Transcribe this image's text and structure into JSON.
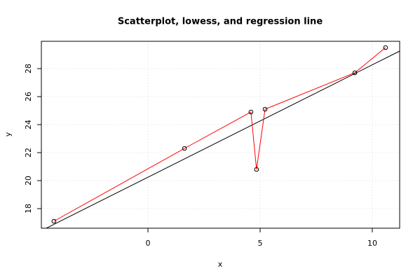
{
  "chart_data": {
    "type": "scatter",
    "title": "Scatterplot, lowess, and regression line",
    "x_label": "x",
    "y_label": "y",
    "x": [
      -4.19,
      1.63,
      4.59,
      4.84,
      5.22,
      9.22,
      10.59
    ],
    "values": [
      17.1,
      22.3,
      24.9,
      20.8,
      25.1,
      27.7,
      29.5
    ],
    "point_color": "#000000",
    "lowess": {
      "color": "#ff0000",
      "x": [
        -4.19,
        1.63,
        4.59,
        4.84,
        5.22,
        9.22,
        10.59
      ],
      "values": [
        17.1,
        22.3,
        24.9,
        20.8,
        25.1,
        27.7,
        29.5
      ]
    },
    "regression": {
      "color": "#000000",
      "intercept": 20.24,
      "slope": 0.803
    },
    "xlim": [
      -4.75,
      11.22
    ],
    "ylim": [
      16.6,
      29.95
    ],
    "xticks": [
      0,
      5,
      10
    ],
    "yticks": [
      18,
      20,
      22,
      24,
      26,
      28
    ],
    "grid": true
  }
}
